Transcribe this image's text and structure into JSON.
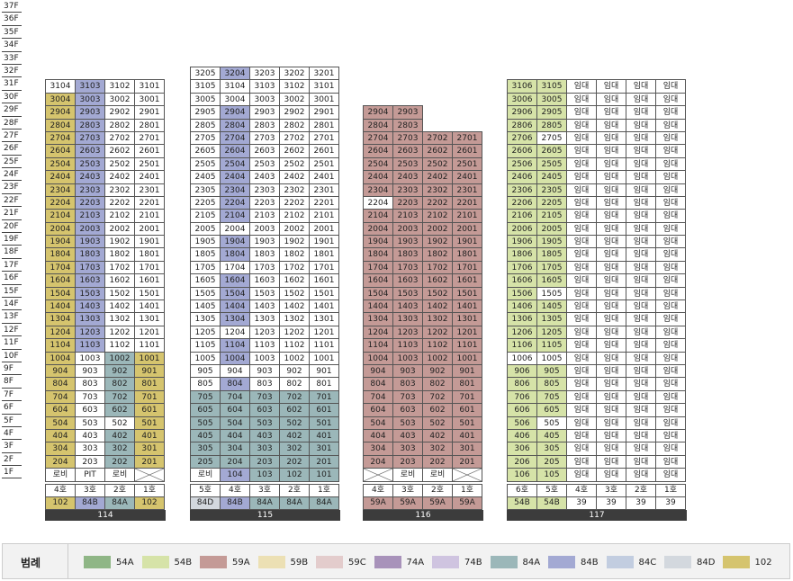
{
  "floors": [
    "37F",
    "36F",
    "35F",
    "34F",
    "33F",
    "32F",
    "31F",
    "30F",
    "29F",
    "28F",
    "27F",
    "26F",
    "25F",
    "24F",
    "23F",
    "22F",
    "21F",
    "20F",
    "19F",
    "18F",
    "17F",
    "16F",
    "15F",
    "14F",
    "13F",
    "12F",
    "11F",
    "10F",
    "9F",
    "8F",
    "7F",
    "6F",
    "5F",
    "4F",
    "3F",
    "2F",
    "1F"
  ],
  "colors": {
    "54A": "#8fb686",
    "54B": "#d6e3a8",
    "59A": "#c49a96",
    "59B": "#ece0b4",
    "59C": "#e3cccc",
    "74A": "#a892ba",
    "74B": "#cfc4e0",
    "84A": "#9bb7b9",
    "84B": "#a3a9d3",
    "84C": "#c2cde0",
    "84D": "#d3d8de",
    "102": "#d5c46e"
  },
  "legend": {
    "title": "범례",
    "items": [
      {
        "label": "54A",
        "type": "54A"
      },
      {
        "label": "54B",
        "type": "54B"
      },
      {
        "label": "59A",
        "type": "59A"
      },
      {
        "label": "59B",
        "type": "59B"
      },
      {
        "label": "59C",
        "type": "59C"
      },
      {
        "label": "74A",
        "type": "74A"
      },
      {
        "label": "74B",
        "type": "74B"
      },
      {
        "label": "84A",
        "type": "84A"
      },
      {
        "label": "84B",
        "type": "84B"
      },
      {
        "label": "84C",
        "type": "84C"
      },
      {
        "label": "84D",
        "type": "84D"
      },
      {
        "label": "102",
        "type": "102"
      }
    ]
  },
  "buildings": [
    {
      "name": "114",
      "top_floor": 31,
      "units": [
        {
          "label": "4호",
          "type": "102",
          "tcode": "102"
        },
        {
          "label": "3호",
          "type": "84B",
          "tcode": "84B"
        },
        {
          "label": "2호",
          "type": "84A",
          "tcode": "84A"
        },
        {
          "label": "1호",
          "type": "102",
          "tcode": "102"
        }
      ],
      "overrides": {
        "1": [
          {
            "text": "로비"
          },
          {
            "text": "PIT"
          },
          {
            "text": "로비"
          },
          {
            "x": true
          }
        ],
        "5": [
          null,
          null,
          {
            "type": "none"
          },
          null
        ]
      },
      "upper_types": [
        "102",
        "84B",
        null,
        null
      ],
      "lower_types": [
        "102",
        null,
        "84A",
        "102"
      ],
      "lower_max": 10,
      "extra_blank": {
        "31": [
          0,
          2,
          3
        ],
        "27": [],
        "20": [],
        "11": []
      },
      "top_blank_col0": [
        31
      ]
    },
    {
      "name": "115",
      "top_floor": 32,
      "units": [
        {
          "label": "5호",
          "type": "84D",
          "tcode": "84D"
        },
        {
          "label": "4호",
          "type": "84B",
          "tcode": "84B"
        },
        {
          "label": "3호",
          "type": "84A",
          "tcode": "84A"
        },
        {
          "label": "2호",
          "type": "84A",
          "tcode": "84A"
        },
        {
          "label": "1호",
          "type": "84A",
          "tcode": "84A"
        }
      ],
      "overrides": {
        "1": [
          {
            "text": "로비"
          },
          null,
          null,
          null,
          null
        ],
        "32": [
          null,
          null,
          {
            "type": "none"
          },
          {
            "type": "none"
          },
          {
            "type": "none"
          }
        ]
      },
      "col_types": [
        null,
        "84B",
        null,
        null,
        null
      ],
      "col_white": {
        "1": [
          31,
          30,
          20,
          17,
          12,
          9
        ]
      },
      "low_block": {
        "max": 7,
        "cols": [
          0,
          1,
          2,
          3,
          4
        ],
        "type": "84A"
      },
      "col0_low_none": true
    },
    {
      "name": "116",
      "top_floor": 29,
      "units": [
        {
          "label": "4호",
          "type": "59A",
          "tcode": "59A"
        },
        {
          "label": "3호",
          "type": "59A",
          "tcode": "59A"
        },
        {
          "label": "2호",
          "type": "59A",
          "tcode": "59A"
        },
        {
          "label": "1호",
          "type": "59A",
          "tcode": "59A"
        }
      ],
      "col_top": [
        29,
        29,
        27,
        27
      ],
      "overrides": {
        "1": [
          {
            "x": true
          },
          {
            "text": "로비"
          },
          {
            "text": "로비"
          },
          {
            "x": true
          }
        ]
      },
      "white_cells": {
        "22": [
          0
        ]
      },
      "all_type": "59A"
    },
    {
      "name": "117",
      "top_floor": 31,
      "units": [
        {
          "label": "6호",
          "type": "54B",
          "tcode": "54B"
        },
        {
          "label": "5호",
          "type": "54B",
          "tcode": "54B"
        },
        {
          "label": "4호",
          "type": "none",
          "tcode": "39"
        },
        {
          "label": "3호",
          "type": "none",
          "tcode": "39"
        },
        {
          "label": "2호",
          "type": "none",
          "tcode": "39"
        },
        {
          "label": "1호",
          "type": "none",
          "tcode": "39"
        }
      ],
      "rent": "임대",
      "white_cells": {
        "27": [
          1
        ],
        "15": [
          1
        ],
        "10": [
          0,
          1
        ],
        "5": [
          1
        ]
      },
      "all_type": "54B"
    }
  ]
}
